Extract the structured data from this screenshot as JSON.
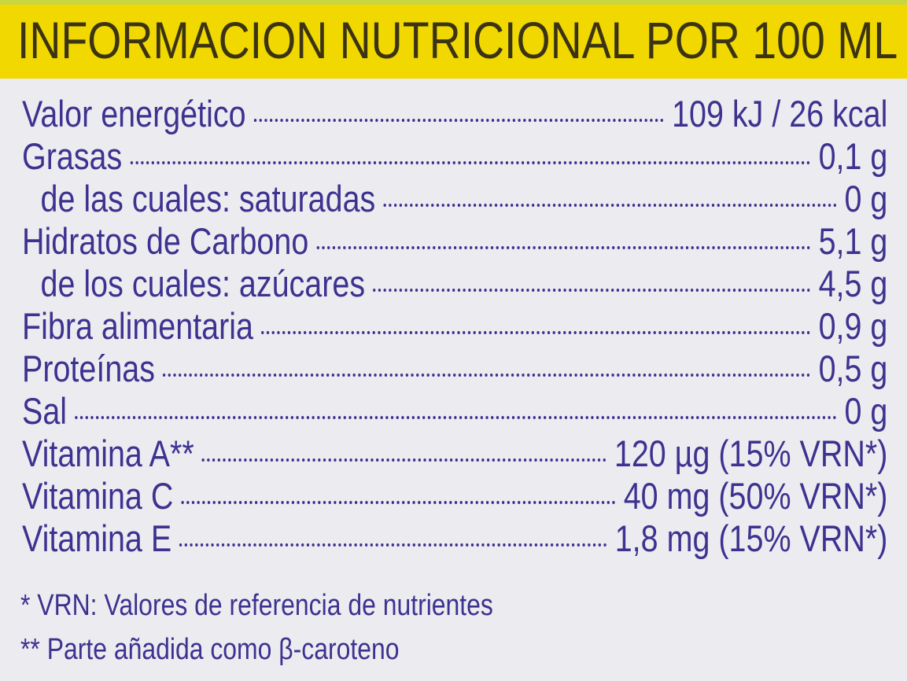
{
  "header": {
    "title": "INFORMACION NUTRICIONAL POR 100 ML"
  },
  "rows": [
    {
      "label": "Valor energético",
      "value": "109 kJ / 26 kcal",
      "sub": false
    },
    {
      "label": "Grasas",
      "value": "0,1 g",
      "sub": false
    },
    {
      "label": "de las cuales: saturadas",
      "value": "0 g",
      "sub": true
    },
    {
      "label": "Hidratos de Carbono",
      "value": "5,1 g",
      "sub": false
    },
    {
      "label": "de los cuales: azúcares",
      "value": "4,5 g",
      "sub": true
    },
    {
      "label": "Fibra alimentaria",
      "value": "0,9 g",
      "sub": false
    },
    {
      "label": "Proteínas",
      "value": "0,5 g",
      "sub": false
    },
    {
      "label": "Sal",
      "value": "0 g",
      "sub": false
    },
    {
      "label": "Vitamina A**",
      "value": "120  µg (15% VRN*)",
      "sub": false
    },
    {
      "label": "Vitamina C",
      "value": "40 mg (50% VRN*)",
      "sub": false
    },
    {
      "label": "Vitamina E",
      "value": "1,8 mg (15% VRN*)",
      "sub": false
    }
  ],
  "footnotes": [
    "* VRN: Valores de referencia de nutrientes",
    "** Parte añadida como β-caroteno"
  ],
  "colors": {
    "band": "#f0d800",
    "text": "#3d3290",
    "title": "#3b3312",
    "background": "#ececf0"
  }
}
